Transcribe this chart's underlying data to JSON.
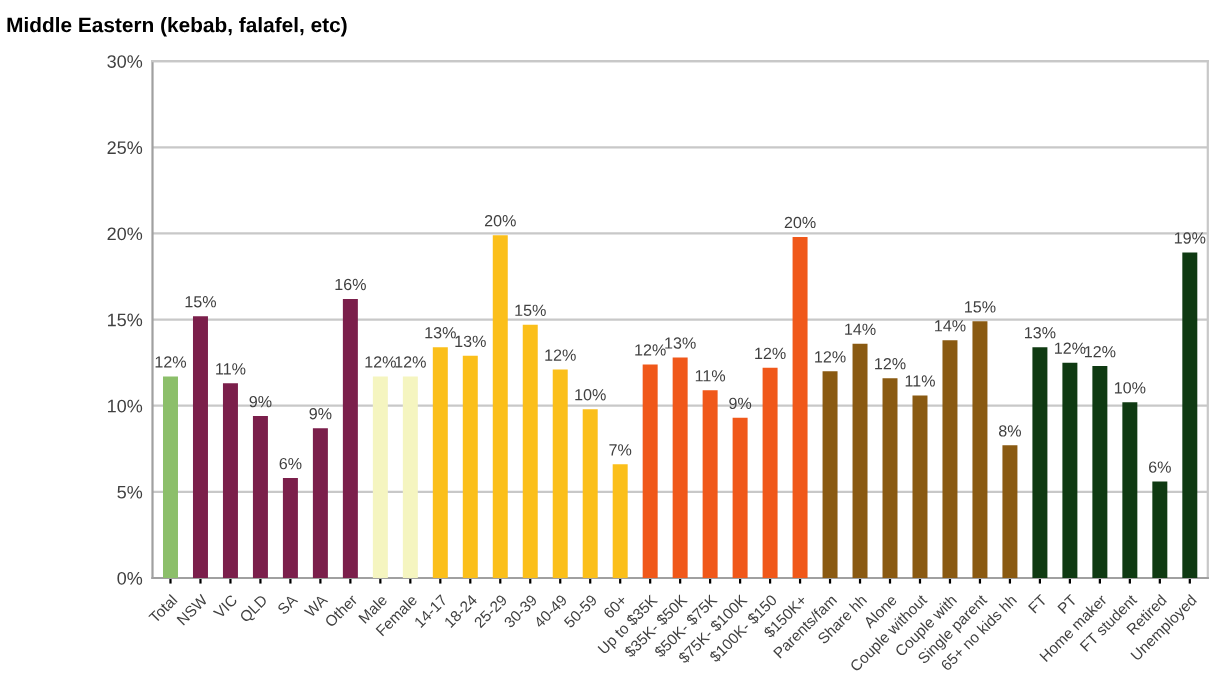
{
  "chart_data": {
    "type": "bar",
    "title": "Middle Eastern (kebab, falafel, etc)",
    "categories": [
      "Total",
      "NSW",
      "VIC",
      "QLD",
      "SA",
      "WA",
      "Other",
      "Male",
      "Female",
      "14-17",
      "18-24",
      "25-29",
      "30-39",
      "40-49",
      "50-59",
      "60+",
      "Up to $35K",
      "$35K- $50K",
      "$50K- $75K",
      "$75K- $100K",
      "$100K- $150",
      "$150K+",
      "Parents/fam",
      "Share hh",
      "Alone",
      "Couple without",
      "Couple with",
      "Single parent",
      "65+ no kids hh",
      "FT",
      "PT",
      "Home maker",
      "FT student",
      "Retired",
      "Unemployed"
    ],
    "values": [
      11.7,
      15.2,
      11.3,
      9.4,
      5.8,
      8.7,
      16.2,
      11.7,
      11.7,
      13.4,
      12.9,
      19.9,
      14.7,
      12.1,
      9.8,
      6.6,
      12.4,
      12.8,
      10.9,
      9.3,
      12.2,
      19.8,
      12.0,
      13.6,
      11.6,
      10.6,
      13.8,
      14.9,
      7.7,
      13.4,
      12.5,
      12.3,
      10.2,
      5.6,
      18.9
    ],
    "value_labels": [
      "12%",
      "15%",
      "11%",
      "9%",
      "6%",
      "9%",
      "16%",
      "12%",
      "12%",
      "13%",
      "13%",
      "20%",
      "15%",
      "12%",
      "10%",
      "7%",
      "12%",
      "13%",
      "11%",
      "9%",
      "12%",
      "20%",
      "12%",
      "14%",
      "12%",
      "11%",
      "14%",
      "15%",
      "8%",
      "13%",
      "12%",
      "12%",
      "10%",
      "6%",
      "19%"
    ],
    "colors": [
      "#8cbf6a",
      "#7b1f4b",
      "#7b1f4b",
      "#7b1f4b",
      "#7b1f4b",
      "#7b1f4b",
      "#7b1f4b",
      "#f5f5c0",
      "#f5f5c0",
      "#fbbf1a",
      "#fbbf1a",
      "#fbbf1a",
      "#fbbf1a",
      "#fbbf1a",
      "#fbbf1a",
      "#fbbf1a",
      "#f0581a",
      "#f0581a",
      "#f0581a",
      "#f0581a",
      "#f0581a",
      "#f0581a",
      "#8a5a12",
      "#8a5a12",
      "#8a5a12",
      "#8a5a12",
      "#8a5a12",
      "#8a5a12",
      "#8a5a12",
      "#0f3a12",
      "#0f3a12",
      "#0f3a12",
      "#0f3a12",
      "#0f3a12",
      "#0f3a12"
    ],
    "ylim": [
      0,
      30
    ],
    "yticks": [
      {
        "value": 0,
        "label": "0%"
      },
      {
        "value": 5,
        "label": "5%"
      },
      {
        "value": 10,
        "label": "10%"
      },
      {
        "value": 15,
        "label": "15%"
      },
      {
        "value": 20,
        "label": "20%"
      },
      {
        "value": 25,
        "label": "25%"
      },
      {
        "value": 30,
        "label": "30%"
      }
    ],
    "grid": "y"
  }
}
